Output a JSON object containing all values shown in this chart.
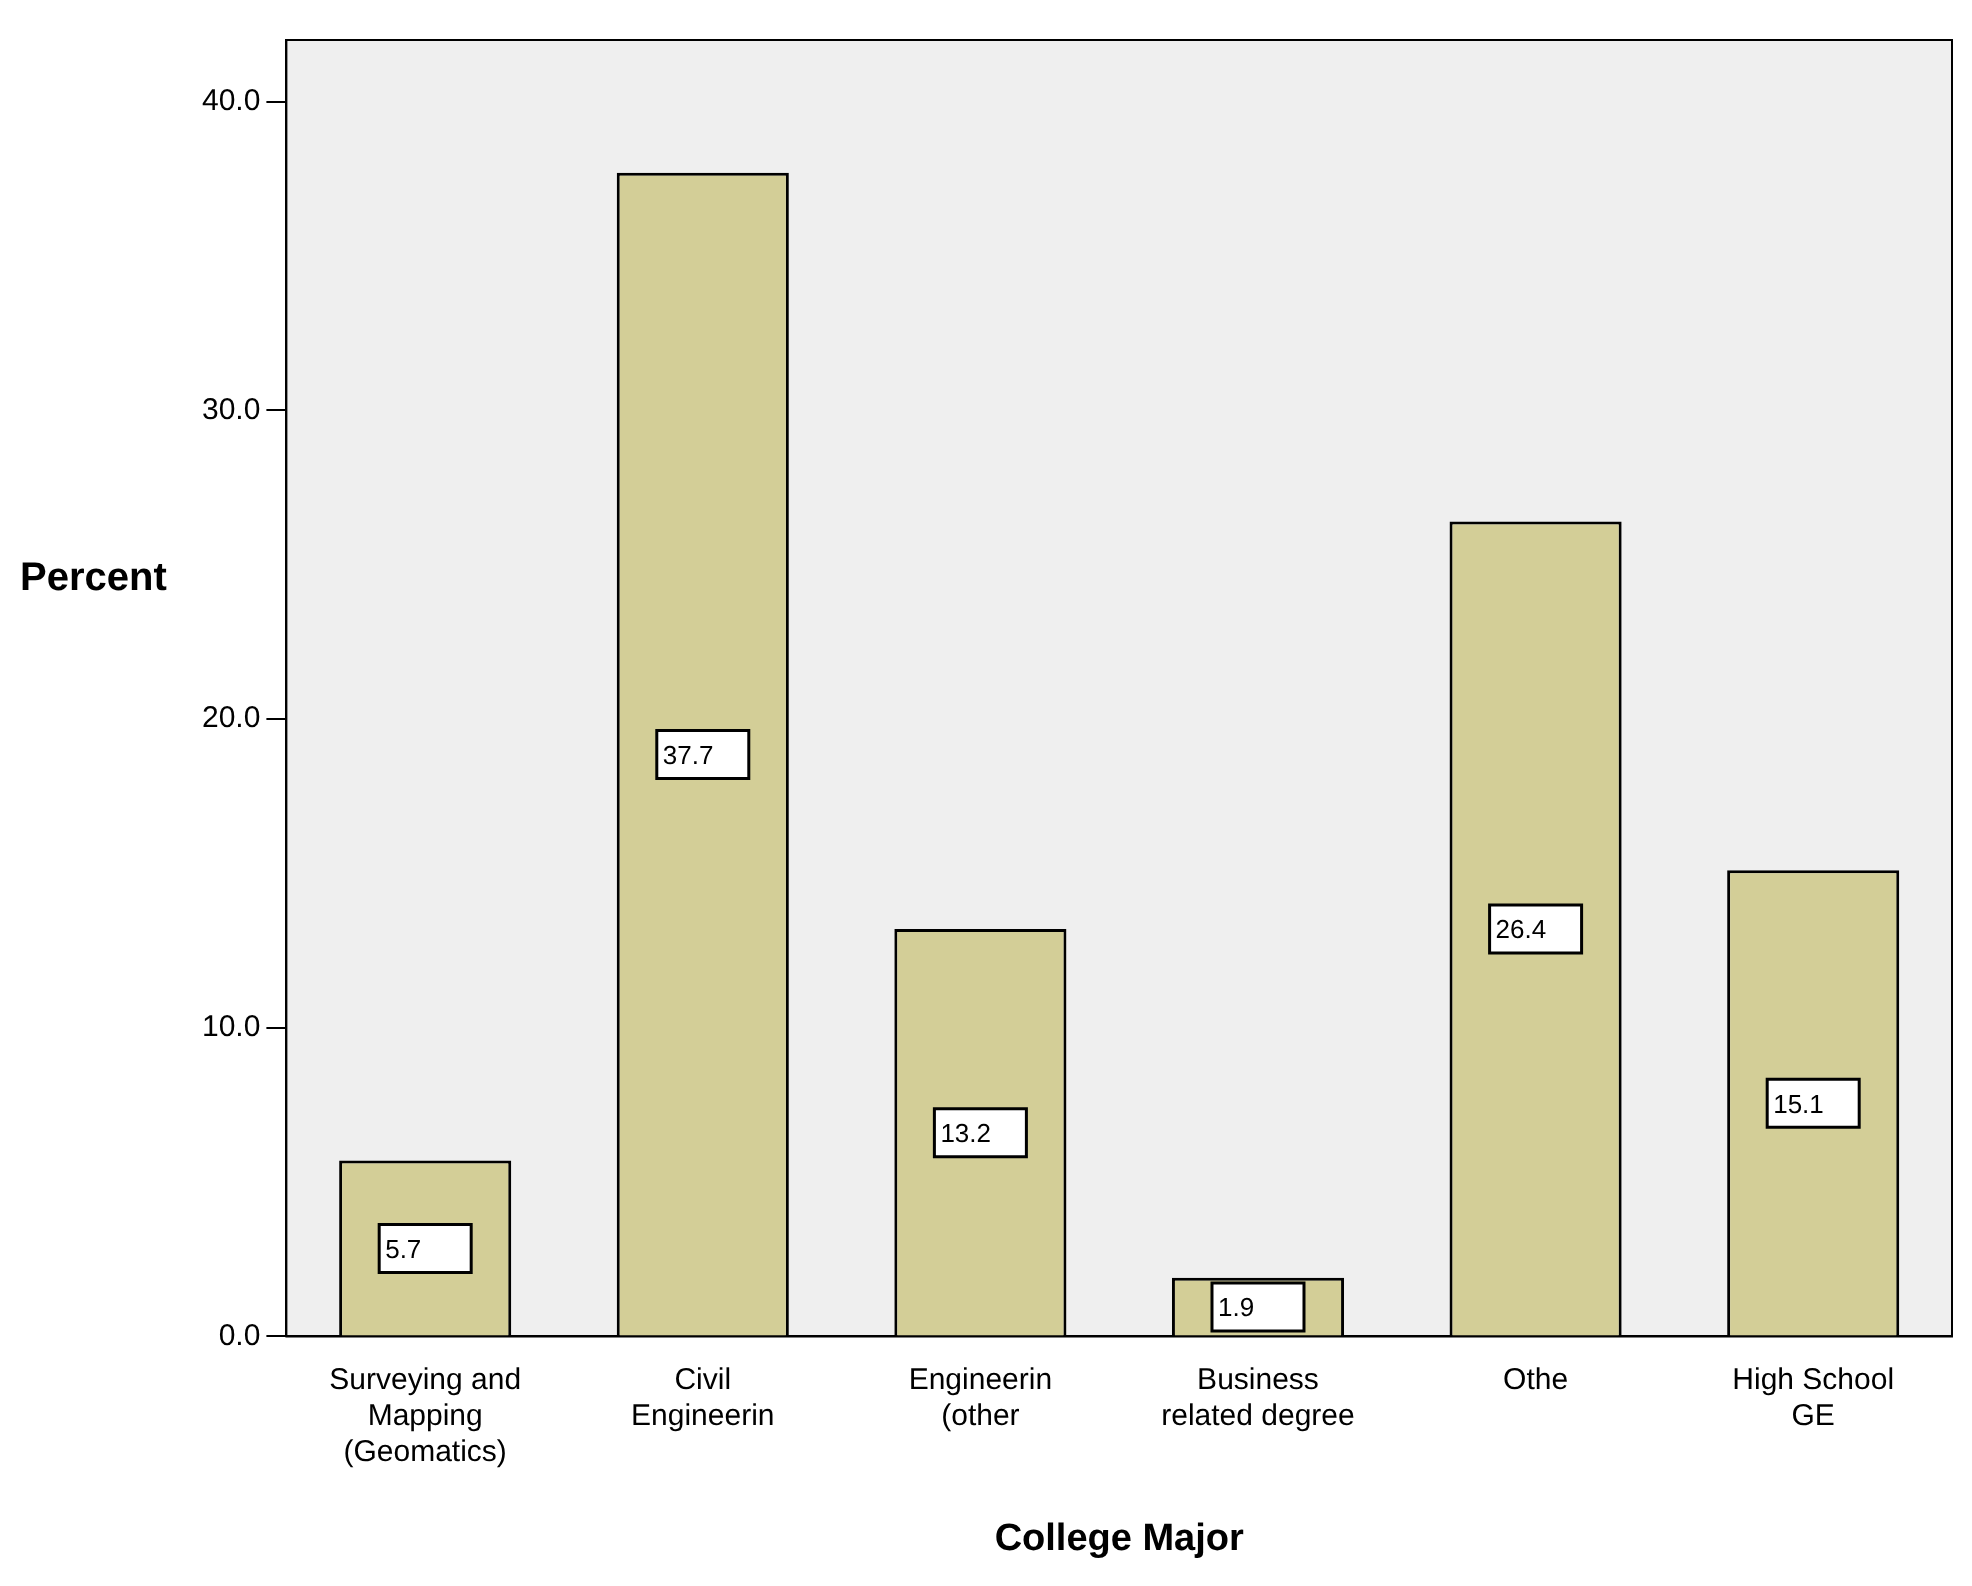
{
  "chart_data": {
    "type": "bar",
    "xlabel": "College Major",
    "ylabel": "Percent",
    "categories": [
      "Surveying and Mapping (Geomatics)",
      "Civil Engineerin",
      "Engineerin (other",
      "Business related degree",
      "Othe",
      "High School GE"
    ],
    "values": [
      5.7,
      37.7,
      13.2,
      1.9,
      26.4,
      15.1
    ],
    "color": "#d3ce97",
    "ylim": [
      0,
      42
    ],
    "yticks": [
      {
        "value": 0,
        "label": "0.0"
      },
      {
        "value": 10,
        "label": "10.0"
      },
      {
        "value": 20,
        "label": "20.0"
      },
      {
        "value": 30,
        "label": "30.0"
      },
      {
        "value": 40,
        "label": "40.0"
      }
    ],
    "grid": false,
    "legend": false,
    "data_labels": true
  }
}
